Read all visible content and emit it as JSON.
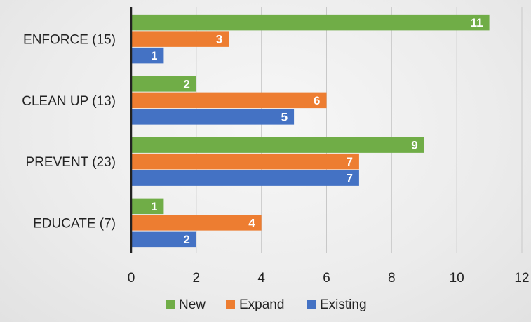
{
  "chart_data": {
    "type": "bar",
    "orientation": "horizontal",
    "categories": [
      "ENFORCE (15)",
      "CLEAN UP (13)",
      "PREVENT (23)",
      "EDUCATE (7)"
    ],
    "series": [
      {
        "name": "New",
        "color": "#70ad47",
        "values": [
          11,
          2,
          9,
          1
        ]
      },
      {
        "name": "Expand",
        "color": "#ed7d31",
        "values": [
          3,
          6,
          7,
          4
        ]
      },
      {
        "name": "Existing",
        "color": "#4472c4",
        "values": [
          1,
          5,
          7,
          2
        ]
      }
    ],
    "xlim": [
      0,
      12
    ],
    "xticks": [
      0,
      2,
      4,
      6,
      8,
      10,
      12
    ],
    "grid": true,
    "legend_position": "bottom",
    "data_labels": true
  }
}
